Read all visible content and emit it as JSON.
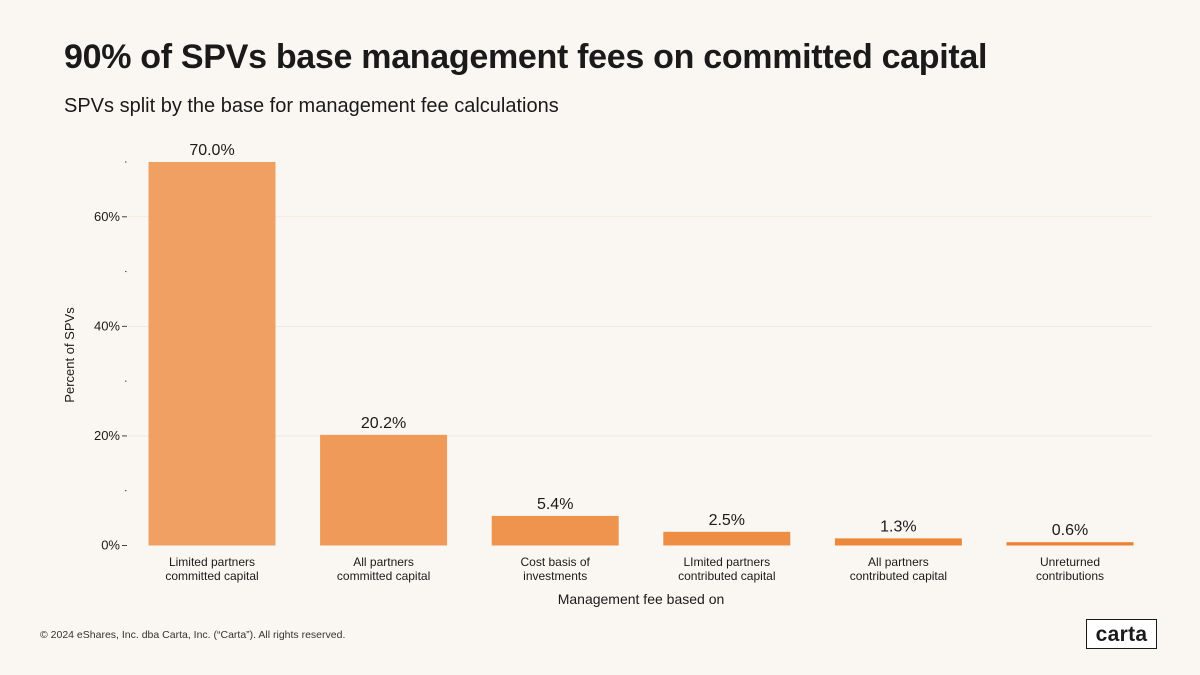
{
  "header": {
    "title": "90% of SPVs base management fees on committed capital",
    "subtitle": "SPVs split by the base for management fee calculations"
  },
  "chart_data": {
    "type": "bar",
    "title": "90% of SPVs base management fees on committed capital",
    "subtitle": "SPVs split by the base for management fee calculations",
    "xlabel": "Management fee based on",
    "ylabel": "Percent of SPVs",
    "categories": [
      [
        "Limited partners",
        "committed capital"
      ],
      [
        "All partners",
        "committed capital"
      ],
      [
        "Cost basis of",
        "investments"
      ],
      [
        "LImited partners",
        "contributed capital"
      ],
      [
        "All partners",
        "contributed capital"
      ],
      [
        "Unreturned",
        "contributions"
      ]
    ],
    "values": [
      70.0,
      20.2,
      5.4,
      2.5,
      1.3,
      0.6
    ],
    "data_labels": [
      "70.0%",
      "20.2%",
      "5.4%",
      "2.5%",
      "1.3%",
      "0.6%"
    ],
    "yticks": [
      0,
      20,
      40,
      60
    ],
    "ytick_labels": [
      "0%",
      "20%",
      "40%",
      "60%"
    ],
    "ylim": [
      0,
      70
    ],
    "grid": true,
    "colors": [
      "#efa062",
      "#ef9a58",
      "#ef944e",
      "#ee8e44",
      "#ed883a",
      "#ec8130"
    ]
  },
  "footer": {
    "copyright": "© 2024 eShares, Inc. dba Carta, Inc. (“Carta”). All rights reserved."
  },
  "brand": {
    "logo_text": "carta"
  }
}
